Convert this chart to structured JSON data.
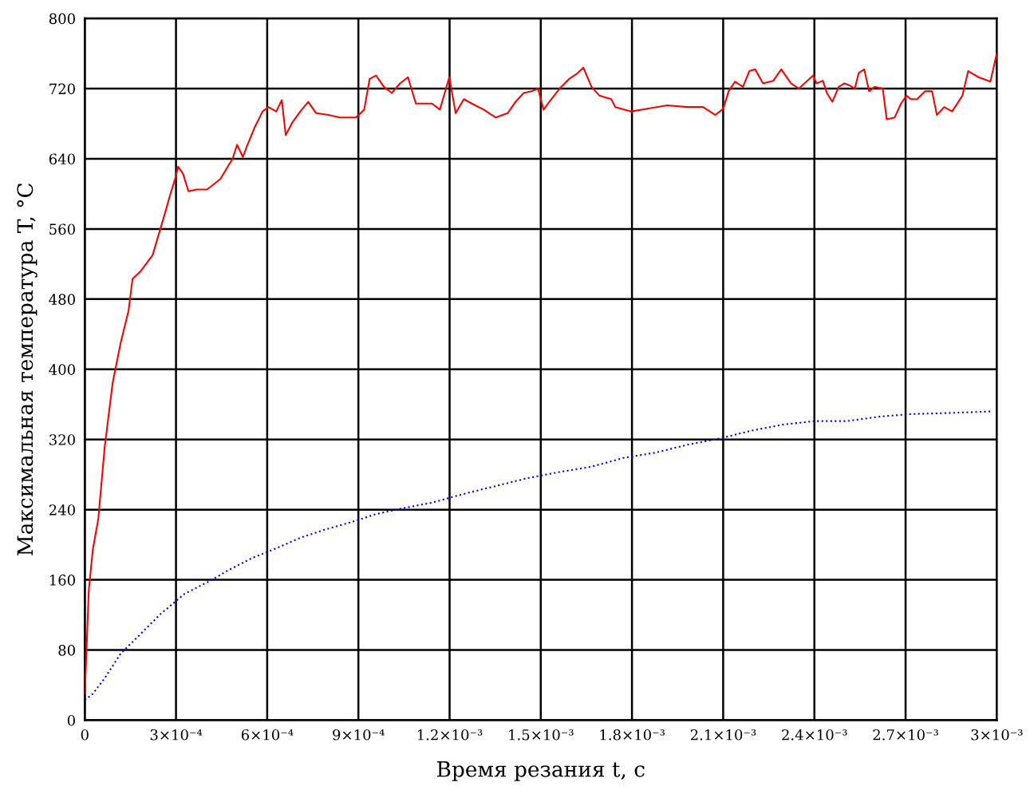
{
  "chart_data": {
    "type": "line",
    "xlabel": "Время резания t, c",
    "ylabel": "Максимальная температура T, °C",
    "xlim": [
      0,
      0.003
    ],
    "ylim": [
      0,
      800
    ],
    "xticks": [
      0,
      {
        "value": 0.0003,
        "label": "3×10⁻⁴"
      },
      {
        "value": 0.0006,
        "label": "6×10⁻⁴"
      },
      {
        "value": 0.0009,
        "label": "9×10⁻⁴"
      },
      {
        "value": 0.0012,
        "label": "1.2×10⁻³"
      },
      {
        "value": 0.0015,
        "label": "1.5×10⁻³"
      },
      {
        "value": 0.0018,
        "label": "1.8×10⁻³"
      },
      {
        "value": 0.0021,
        "label": "2.1×10⁻³"
      },
      {
        "value": 0.0024,
        "label": "2.4×10⁻³"
      },
      {
        "value": 0.0027,
        "label": "2.7×10⁻³"
      },
      {
        "value": 0.003,
        "label": "3×10⁻³"
      }
    ],
    "yticks": [
      0,
      80,
      160,
      240,
      320,
      400,
      480,
      560,
      640,
      720,
      800
    ],
    "grid": true,
    "legend": false,
    "marker": "none",
    "series": [
      {
        "color": "#ff0000",
        "line_style": "solid",
        "x": [
          0,
          5.2e-06,
          1.31e-05,
          2.62e-05,
          4.46e-05,
          6.56e-05,
          9.19e-05,
          0.000118,
          0.000144,
          0.000157,
          0.000184,
          0.000223,
          0.000262,
          0.000281,
          0.000297,
          0.000307,
          0.000323,
          0.000341,
          0.000367,
          0.000402,
          0.000428,
          0.000446,
          0.000467,
          0.000486,
          0.000501,
          0.00052,
          0.000533,
          0.000559,
          0.000585,
          0.000604,
          0.00063,
          0.000648,
          0.000661,
          0.000682,
          0.000709,
          0.000735,
          0.000761,
          0.000801,
          0.00084,
          0.000892,
          0.000919,
          0.000937,
          0.000958,
          0.000984,
          0.00101,
          0.001037,
          0.001063,
          0.001089,
          0.001142,
          0.001168,
          0.001199,
          0.00122,
          0.001247,
          0.001273,
          0.001312,
          0.001352,
          0.001391,
          0.001417,
          0.001444,
          0.00147,
          0.001491,
          0.001509,
          0.001535,
          0.001562,
          0.001593,
          0.001619,
          0.00164,
          0.001667,
          0.001693,
          0.001732,
          0.001745,
          0.001798,
          0.00185,
          0.001916,
          0.001982,
          0.002034,
          0.002074,
          0.0021,
          0.002118,
          0.002139,
          0.002165,
          0.002186,
          0.002205,
          0.002231,
          0.002265,
          0.002291,
          0.002323,
          0.002349,
          0.002396,
          0.002407,
          0.002428,
          0.002441,
          0.002459,
          0.00248,
          0.002499,
          0.002514,
          0.002533,
          0.002546,
          0.002564,
          0.00258,
          0.002598,
          0.002625,
          0.002638,
          0.002664,
          0.002685,
          0.002703,
          0.002717,
          0.002738,
          0.002764,
          0.002787,
          0.002803,
          0.002827,
          0.002853,
          0.002887,
          0.002906,
          0.00294,
          0.002979,
          0.003
        ],
        "values": [
          30,
          75,
          148,
          194,
          230,
          312,
          385,
          430,
          467,
          503,
          512,
          530,
          576,
          599,
          617,
          631,
          623,
          603,
          605,
          605,
          612,
          617,
          629,
          640,
          656,
          642,
          654,
          676,
          694,
          699,
          694,
          707,
          667,
          681,
          694,
          705,
          692,
          690,
          687,
          687,
          696,
          731,
          735,
          722,
          715,
          726,
          733,
          703,
          703,
          696,
          733,
          692,
          708,
          703,
          696,
          687,
          692,
          705,
          715,
          717,
          720,
          696,
          708,
          720,
          731,
          737,
          744,
          722,
          712,
          708,
          699,
          694,
          697,
          701,
          699,
          699,
          690,
          697,
          717,
          728,
          722,
          740,
          742,
          726,
          729,
          742,
          726,
          720,
          735,
          726,
          729,
          715,
          705,
          722,
          726,
          724,
          720,
          738,
          742,
          717,
          722,
          720,
          685,
          687,
          703,
          712,
          708,
          708,
          717,
          717,
          690,
          699,
          694,
          712,
          740,
          733,
          728,
          760
        ]
      },
      {
        "color": "#0000ff",
        "line_style": "dotted",
        "x": [
          0,
          2.62e-05,
          6.56e-05,
          0.000118,
          0.000171,
          0.000249,
          0.000328,
          0.000407,
          0.000472,
          0.000551,
          0.00063,
          0.000709,
          0.000787,
          0.000879,
          0.000958,
          0.001037,
          0.001142,
          0.001247,
          0.001352,
          0.001457,
          0.001562,
          0.001667,
          0.001772,
          0.001877,
          0.001982,
          0.002087,
          0.002192,
          0.002297,
          0.002402,
          0.002507,
          0.002612,
          0.002717,
          0.002822,
          0.002979
        ],
        "values": [
          23,
          30,
          48,
          76,
          94,
          121,
          144,
          158,
          171,
          185,
          196,
          208,
          217,
          226,
          235,
          241,
          248,
          258,
          267,
          276,
          283,
          289,
          299,
          305,
          314,
          321,
          330,
          337,
          341,
          341,
          346,
          349,
          350,
          352
        ]
      }
    ]
  }
}
